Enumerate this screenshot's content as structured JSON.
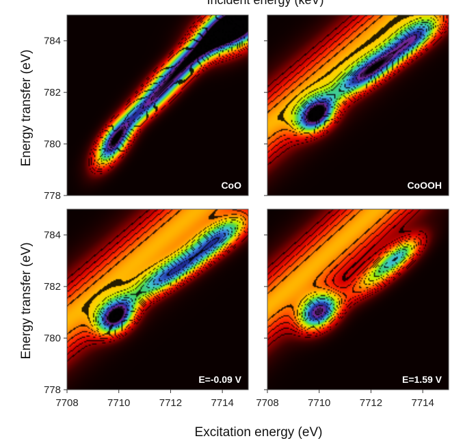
{
  "top_partial_label": "Incident energy (keV)",
  "chart_data": {
    "type": "heatmap",
    "xlabel": "Excitation energy (eV)",
    "ylabel": "Energy transfer (eV)",
    "xlim": [
      7708,
      7715
    ],
    "ylim": [
      778,
      785
    ],
    "xticks": [
      7708,
      7710,
      7712,
      7714
    ],
    "yticks": [
      778,
      780,
      782,
      784
    ],
    "colorscale": [
      "#0a0000",
      "#3a0000",
      "#8a0000",
      "#d40000",
      "#ff2a00",
      "#ff7a00",
      "#ffd200",
      "#b8f000",
      "#40d060",
      "#40c8c8",
      "#3a78e0",
      "#1c2a90",
      "#7a2aa0",
      "#000000"
    ],
    "panels": [
      {
        "label": "CoO",
        "peaks": [
          {
            "x": 7709.8,
            "y": 780.0,
            "amp": 1.0,
            "sa": 0.75,
            "sb": 0.32,
            "angle": 55
          },
          {
            "x": 7711.2,
            "y": 781.6,
            "amp": 0.92,
            "sa": 1.25,
            "sb": 0.3,
            "angle": 42
          },
          {
            "x": 7712.7,
            "y": 783.3,
            "amp": 0.96,
            "sa": 1.3,
            "sb": 0.33,
            "angle": 40
          },
          {
            "x": 7714.5,
            "y": 784.6,
            "amp": 1.6,
            "sa": 1.0,
            "sb": 0.55,
            "angle": 30
          }
        ],
        "background": {
          "amp": 0.55,
          "width": 1.15,
          "slope": 0.95,
          "intercept": -7327.8
        }
      },
      {
        "label": "CoOOH",
        "peaks": [
          {
            "x": 7709.9,
            "y": 781.1,
            "amp": 1.0,
            "sa": 0.55,
            "sb": 0.38,
            "angle": 40
          },
          {
            "x": 7712.1,
            "y": 782.9,
            "amp": 0.9,
            "sa": 1.2,
            "sb": 0.32,
            "angle": 35
          },
          {
            "x": 7713.8,
            "y": 784.2,
            "amp": 0.62,
            "sa": 0.8,
            "sb": 0.35,
            "angle": 35
          }
        ],
        "background": {
          "amp": 0.5,
          "width": 1.1,
          "slope": 0.85,
          "intercept": -5771.1
        }
      },
      {
        "label": "E=-0.09 V",
        "peaks": [
          {
            "x": 7709.9,
            "y": 780.8,
            "amp": 1.0,
            "sa": 0.55,
            "sb": 0.38,
            "angle": 40
          },
          {
            "x": 7712.2,
            "y": 782.6,
            "amp": 0.78,
            "sa": 1.4,
            "sb": 0.33,
            "angle": 33
          },
          {
            "x": 7714.0,
            "y": 784.0,
            "amp": 0.6,
            "sa": 0.9,
            "sb": 0.35,
            "angle": 33
          }
        ],
        "background": {
          "amp": 0.5,
          "width": 1.15,
          "slope": 0.85,
          "intercept": -5771.1
        }
      },
      {
        "label": "E=1.59 V",
        "peaks": [
          {
            "x": 7710.0,
            "y": 781.0,
            "amp": 1.0,
            "sa": 0.6,
            "sb": 0.42,
            "angle": 40
          },
          {
            "x": 7712.3,
            "y": 782.5,
            "amp": 0.55,
            "sa": 1.1,
            "sb": 0.35,
            "angle": 38
          },
          {
            "x": 7713.2,
            "y": 783.3,
            "amp": 0.45,
            "sa": 0.7,
            "sb": 0.3,
            "angle": 38
          }
        ],
        "background": {
          "amp": 0.5,
          "width": 1.1,
          "slope": 0.9,
          "intercept": -6156.0
        }
      }
    ]
  }
}
